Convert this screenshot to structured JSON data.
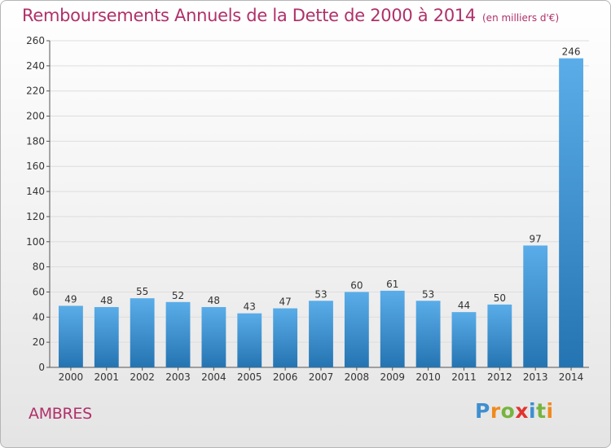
{
  "header": {
    "title": "Remboursements Annuels de la Dette de 2000 à 2014",
    "unit": "(en milliers d'€)"
  },
  "footer": {
    "commune": "AMBRES",
    "logo": "Proxiti"
  },
  "colors": {
    "title": "#b0306a",
    "bar_top": "#5aade8",
    "bar_bottom": "#2574b2",
    "grid": "#dddddd",
    "axis": "#555555"
  },
  "chart_data": {
    "type": "bar",
    "title": "Remboursements Annuels de la Dette de 2000 à 2014",
    "subtitle": "(en milliers d'€)",
    "categories": [
      "2000",
      "2001",
      "2002",
      "2003",
      "2004",
      "2005",
      "2006",
      "2007",
      "2008",
      "2009",
      "2010",
      "2011",
      "2012",
      "2013",
      "2014"
    ],
    "values": [
      49,
      48,
      55,
      52,
      48,
      43,
      47,
      53,
      60,
      61,
      53,
      44,
      50,
      97,
      246
    ],
    "xlabel": "",
    "ylabel": "",
    "ylim": [
      0,
      260
    ],
    "yticks": [
      0,
      20,
      40,
      60,
      80,
      100,
      120,
      140,
      160,
      180,
      200,
      220,
      240,
      260
    ],
    "grid": true,
    "data_labels": true
  }
}
